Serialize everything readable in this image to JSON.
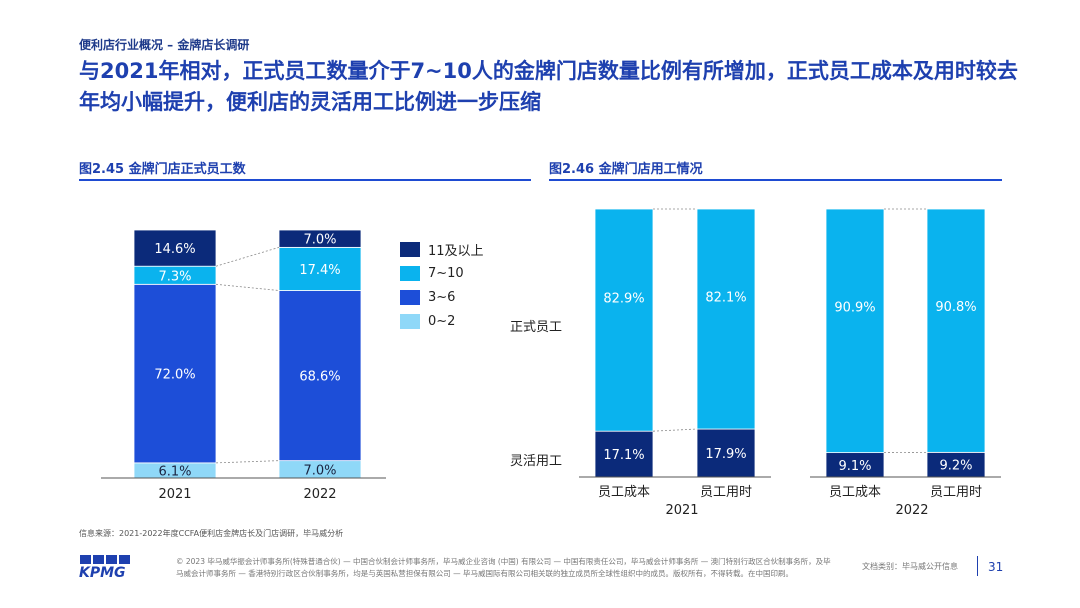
{
  "header": {
    "breadcrumb": "便利店行业概况 – 金牌店长调研",
    "title": "与2021年相对，正式员工数量介于7~10人的金牌门店数量比例有所增加，正式员工成本及用时较去年均小幅提升，便利店的灵活用工比例进一步压缩"
  },
  "figure1": {
    "title": "图2.45 金牌门店正式员工数"
  },
  "figure2": {
    "title": "图2.46 金牌门店用工情况"
  },
  "colors": {
    "c11": "#0b2a7a",
    "c710": "#0ab3ee",
    "c36": "#1d4ed8",
    "c02": "#8fd8f8",
    "accent": "#1e40af"
  },
  "chart_data": [
    {
      "type": "bar",
      "stacked": true,
      "title": "图2.45 金牌门店正式员工数",
      "categories": [
        "2021",
        "2022"
      ],
      "series": [
        {
          "name": "0~2",
          "values": [
            6.1,
            7.0
          ]
        },
        {
          "name": "3~6",
          "values": [
            72.0,
            68.6
          ]
        },
        {
          "name": "7~10",
          "values": [
            7.3,
            17.4
          ]
        },
        {
          "name": "11及以上",
          "values": [
            14.6,
            7.0
          ]
        }
      ],
      "legend": [
        "11及以上",
        "7~10",
        "3~6",
        "0~2"
      ],
      "unit": "%",
      "ylim": [
        0,
        100
      ]
    },
    {
      "type": "bar",
      "stacked": true,
      "title": "图2.46 金牌门店用工情况",
      "groups": [
        "2021",
        "2022"
      ],
      "categories": [
        "员工成本",
        "员工用时",
        "员工成本",
        "员工用时"
      ],
      "series": [
        {
          "name": "灵活用工",
          "values": [
            17.1,
            17.9,
            9.1,
            9.2
          ]
        },
        {
          "name": "正式员工",
          "values": [
            82.9,
            82.1,
            90.9,
            90.8
          ]
        }
      ],
      "unit": "%",
      "ylim": [
        0,
        100
      ]
    }
  ],
  "footer": {
    "source": "信息来源：2021-2022年度CCFA便利店金牌店长及门店调研，毕马威分析",
    "note": "© 2023 毕马威华振会计师事务所(特殊普通合伙) — 中国合伙制会计师事务所，毕马威企业咨询 (中国) 有限公司 — 中国有限责任公司，毕马威会计师事务所 — 澳门特别行政区合伙制事务所，及毕马威会计师事务所 — 香港特别行政区合伙制事务所，均是与英国私营担保有限公司 — 毕马威国际有限公司相关联的独立成员所全球性组织中的成员。版权所有，不得转载。在中国印刷。",
    "classification": "文档类别：毕马威公开信息",
    "page": "31",
    "logo": "KPMG"
  }
}
